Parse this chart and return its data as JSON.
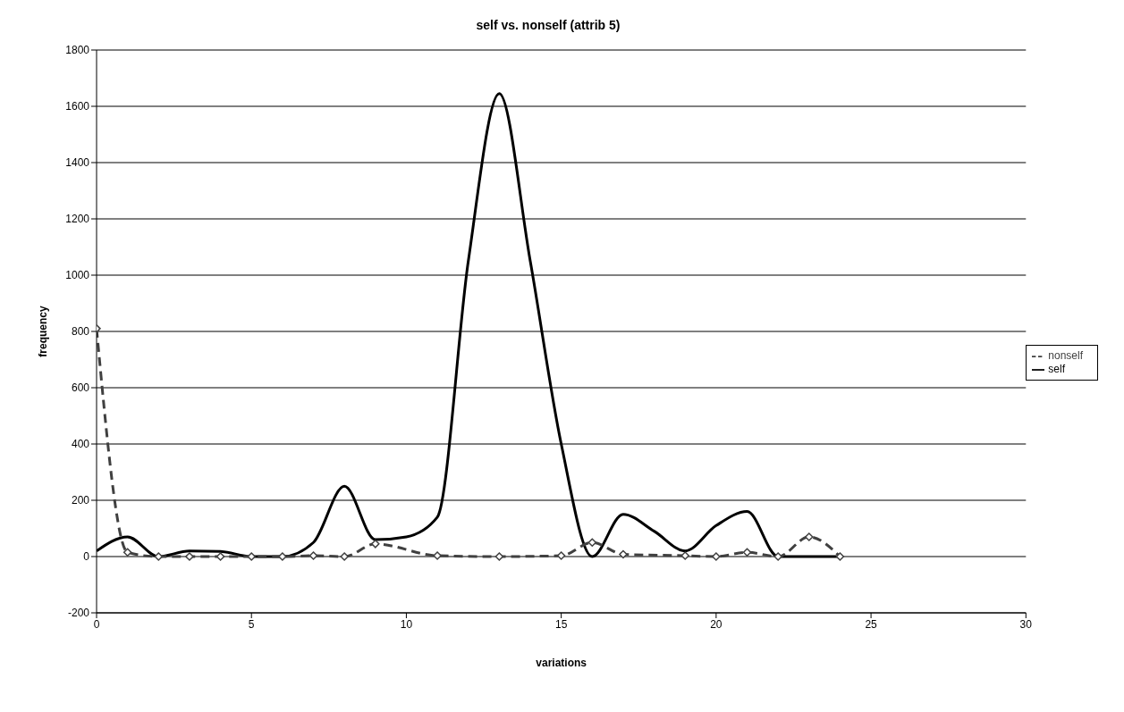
{
  "chart_data": {
    "type": "line",
    "title": "self vs. nonself (attrib 5)",
    "xlabel": "variations",
    "ylabel": "frequency",
    "series": [
      {
        "name": "self",
        "color": "#000000",
        "line_style": "solid",
        "marker": "none",
        "x": [
          0,
          1,
          2,
          3,
          4,
          5,
          6,
          7,
          8,
          9,
          10,
          11,
          12,
          13,
          14,
          15,
          16,
          17,
          18,
          19,
          20,
          21,
          22,
          23,
          24
        ],
        "values": [
          20,
          70,
          0,
          20,
          18,
          0,
          0,
          50,
          250,
          60,
          70,
          140,
          1050,
          1645,
          1050,
          400,
          0,
          150,
          90,
          20,
          110,
          160,
          0,
          0,
          0
        ]
      },
      {
        "name": "nonself",
        "color": "#404040",
        "line_style": "dashed",
        "marker": "diamond",
        "x": [
          0,
          1,
          2,
          3,
          4,
          5,
          6,
          7,
          8,
          9,
          11,
          13,
          15,
          16,
          17,
          19,
          20,
          21,
          22,
          23,
          24
        ],
        "values": [
          810,
          15,
          0,
          0,
          0,
          0,
          0,
          3,
          0,
          45,
          3,
          0,
          3,
          50,
          8,
          3,
          0,
          15,
          0,
          70,
          0
        ]
      }
    ],
    "xlim": [
      0,
      30
    ],
    "xticks": [
      0,
      5,
      10,
      15,
      20,
      25,
      30
    ],
    "ylim": [
      -200,
      1800
    ],
    "yticks": [
      -200,
      0,
      200,
      400,
      600,
      800,
      1000,
      1200,
      1400,
      1600,
      1800
    ],
    "grid": "y",
    "legend": "right"
  }
}
